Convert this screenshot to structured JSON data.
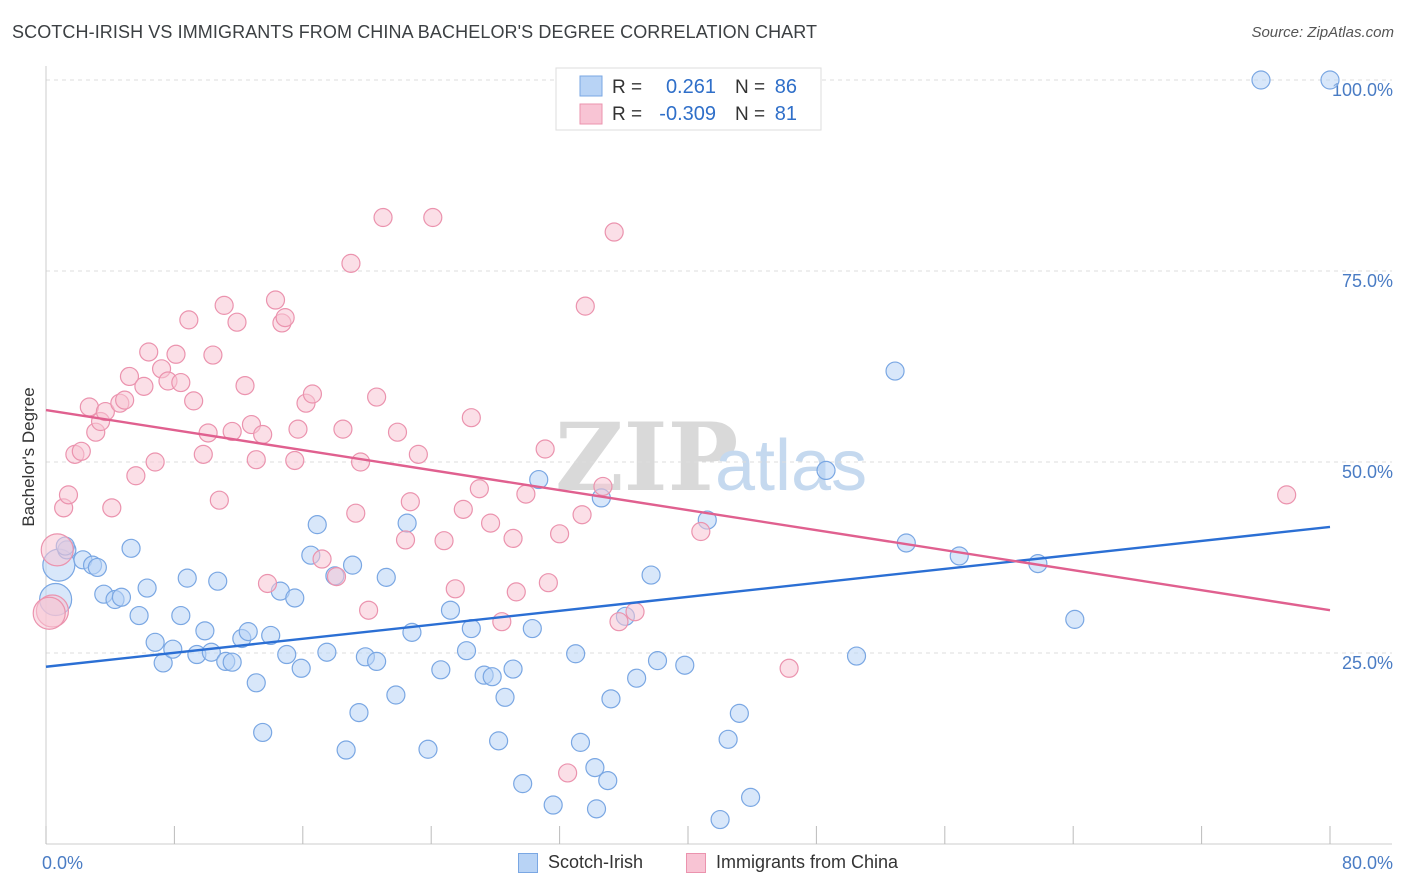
{
  "header": {
    "title": "SCOTCH-IRISH VS IMMIGRANTS FROM CHINA BACHELOR'S DEGREE CORRELATION CHART",
    "source": "Source: ZipAtlas.com"
  },
  "watermark": {
    "zip": "ZIP",
    "atlas": "atlas"
  },
  "colors": {
    "blue_fill": "#b8d3f5",
    "blue_stroke": "#7aa7e3",
    "blue_line": "#2b6fd4",
    "pink_fill": "#f8c4d4",
    "pink_stroke": "#eb93ae",
    "pink_line": "#e0608f"
  },
  "legend": {
    "r_label": "R =",
    "n_label": "N =",
    "blue": {
      "r": "0.261",
      "n": "86"
    },
    "pink": {
      "r": "-0.309",
      "n": "81"
    }
  },
  "bottom_legend": {
    "blue": "Scotch-Irish",
    "pink": "Immigrants from China"
  },
  "chart_data": {
    "type": "scatter",
    "title": "SCOTCH-IRISH VS IMMIGRANTS FROM CHINA BACHELOR'S DEGREE CORRELATION CHART",
    "xlabel": "",
    "ylabel": "Bachelor's Degree",
    "xlim": [
      0,
      80
    ],
    "ylim": [
      0,
      102
    ],
    "x_tick_labels": [
      "0.0%",
      "80.0%"
    ],
    "y_ticks": [
      25,
      50,
      75,
      100
    ],
    "y_tick_labels": [
      "25.0%",
      "50.0%",
      "75.0%",
      "100.0%"
    ],
    "grid": true,
    "legend_position": "top-center",
    "series": [
      {
        "name": "Scotch-Irish",
        "color": "#b8d3f5",
        "r": 0.261,
        "n": 86,
        "trend": {
          "x": [
            0,
            80
          ],
          "y": [
            23.2,
            41.5
          ]
        },
        "points": [
          [
            0.8,
            36.5
          ],
          [
            0.6,
            32
          ],
          [
            1.3,
            38.5
          ],
          [
            1.2,
            39
          ],
          [
            2.3,
            37.2
          ],
          [
            2.9,
            36.5
          ],
          [
            3.2,
            36.2
          ],
          [
            3.6,
            32.7
          ],
          [
            4.3,
            32.0
          ],
          [
            4.7,
            32.3
          ],
          [
            5.3,
            38.7
          ],
          [
            5.8,
            29.9
          ],
          [
            6.3,
            33.5
          ],
          [
            6.8,
            26.4
          ],
          [
            7.3,
            23.7
          ],
          [
            7.9,
            25.5
          ],
          [
            8.4,
            29.9
          ],
          [
            8.8,
            34.8
          ],
          [
            9.4,
            24.8
          ],
          [
            9.9,
            27.9
          ],
          [
            10.3,
            25.1
          ],
          [
            10.7,
            34.4
          ],
          [
            11.2,
            23.9
          ],
          [
            11.6,
            23.8
          ],
          [
            12.2,
            26.9
          ],
          [
            12.6,
            27.8
          ],
          [
            13.1,
            21.1
          ],
          [
            13.5,
            14.6
          ],
          [
            14.0,
            27.3
          ],
          [
            14.6,
            33.1
          ],
          [
            15.0,
            24.8
          ],
          [
            15.5,
            32.2
          ],
          [
            15.9,
            23.0
          ],
          [
            16.5,
            37.8
          ],
          [
            16.9,
            41.8
          ],
          [
            17.5,
            25.1
          ],
          [
            18.0,
            35.1
          ],
          [
            18.7,
            12.3
          ],
          [
            19.1,
            36.5
          ],
          [
            19.5,
            17.2
          ],
          [
            19.9,
            24.5
          ],
          [
            20.6,
            23.9
          ],
          [
            21.2,
            34.9
          ],
          [
            21.8,
            19.5
          ],
          [
            22.5,
            42.0
          ],
          [
            22.8,
            27.7
          ],
          [
            23.8,
            12.4
          ],
          [
            24.6,
            22.8
          ],
          [
            25.2,
            30.6
          ],
          [
            26.2,
            25.3
          ],
          [
            26.5,
            28.2
          ],
          [
            27.3,
            22.1
          ],
          [
            27.8,
            21.9
          ],
          [
            28.2,
            13.5
          ],
          [
            28.6,
            19.2
          ],
          [
            29.1,
            22.9
          ],
          [
            29.7,
            7.9
          ],
          [
            30.3,
            28.2
          ],
          [
            30.7,
            47.7
          ],
          [
            31.6,
            5.1
          ],
          [
            33.0,
            24.9
          ],
          [
            33.3,
            13.3
          ],
          [
            34.2,
            10.0
          ],
          [
            34.3,
            4.6
          ],
          [
            34.6,
            45.3
          ],
          [
            35.0,
            8.3
          ],
          [
            35.2,
            19.0
          ],
          [
            36.1,
            29.8
          ],
          [
            36.8,
            21.7
          ],
          [
            37.7,
            35.2
          ],
          [
            38.1,
            24.0
          ],
          [
            39.8,
            23.4
          ],
          [
            41.2,
            42.4
          ],
          [
            42.0,
            3.2
          ],
          [
            42.5,
            13.7
          ],
          [
            43.2,
            17.1
          ],
          [
            43.9,
            6.1
          ],
          [
            48.6,
            48.9
          ],
          [
            50.5,
            24.6
          ],
          [
            52.9,
            61.9
          ],
          [
            53.6,
            39.4
          ],
          [
            56.9,
            37.7
          ],
          [
            61.8,
            36.7
          ],
          [
            64.1,
            29.4
          ],
          [
            75.7,
            100.0
          ],
          [
            80.0,
            100.0
          ]
        ]
      },
      {
        "name": "Immigrants from China",
        "color": "#f8c4d4",
        "r": -0.309,
        "n": 81,
        "trend": {
          "x": [
            0,
            80
          ],
          "y": [
            56.8,
            30.6
          ]
        },
        "points": [
          [
            0.4,
            30.5
          ],
          [
            0.7,
            38.5
          ],
          [
            1.1,
            44.0
          ],
          [
            1.4,
            45.7
          ],
          [
            1.8,
            51.0
          ],
          [
            2.2,
            51.4
          ],
          [
            2.7,
            57.2
          ],
          [
            3.1,
            53.9
          ],
          [
            3.4,
            55.3
          ],
          [
            3.7,
            56.6
          ],
          [
            4.1,
            44.0
          ],
          [
            4.6,
            57.7
          ],
          [
            4.9,
            58.1
          ],
          [
            5.2,
            61.2
          ],
          [
            5.6,
            48.2
          ],
          [
            6.1,
            59.9
          ],
          [
            6.4,
            64.4
          ],
          [
            6.8,
            50.0
          ],
          [
            7.2,
            62.2
          ],
          [
            7.6,
            60.6
          ],
          [
            8.1,
            64.1
          ],
          [
            8.4,
            60.4
          ],
          [
            8.9,
            68.6
          ],
          [
            9.2,
            58.0
          ],
          [
            9.8,
            51.0
          ],
          [
            10.1,
            53.8
          ],
          [
            10.4,
            64.0
          ],
          [
            10.8,
            45.0
          ],
          [
            11.1,
            70.5
          ],
          [
            11.6,
            54.0
          ],
          [
            11.9,
            68.3
          ],
          [
            12.4,
            60.0
          ],
          [
            12.8,
            54.9
          ],
          [
            13.1,
            50.3
          ],
          [
            13.5,
            53.6
          ],
          [
            13.8,
            34.1
          ],
          [
            14.3,
            71.2
          ],
          [
            14.7,
            68.2
          ],
          [
            14.9,
            68.9
          ],
          [
            15.5,
            50.2
          ],
          [
            15.7,
            54.3
          ],
          [
            16.2,
            57.7
          ],
          [
            16.6,
            58.9
          ],
          [
            17.2,
            37.3
          ],
          [
            18.1,
            35.0
          ],
          [
            18.5,
            54.3
          ],
          [
            19.0,
            76.0
          ],
          [
            19.3,
            43.3
          ],
          [
            19.6,
            50.0
          ],
          [
            20.1,
            30.6
          ],
          [
            20.6,
            58.5
          ],
          [
            21.0,
            82.0
          ],
          [
            21.9,
            53.9
          ],
          [
            22.4,
            39.8
          ],
          [
            22.7,
            44.8
          ],
          [
            23.2,
            51.0
          ],
          [
            24.1,
            82.0
          ],
          [
            24.8,
            39.7
          ],
          [
            25.5,
            33.4
          ],
          [
            26.0,
            43.8
          ],
          [
            26.5,
            55.8
          ],
          [
            27.0,
            46.5
          ],
          [
            27.7,
            42.0
          ],
          [
            28.4,
            29.1
          ],
          [
            29.1,
            40.0
          ],
          [
            29.3,
            33.0
          ],
          [
            29.9,
            45.8
          ],
          [
            31.1,
            51.7
          ],
          [
            31.3,
            34.2
          ],
          [
            32.0,
            40.6
          ],
          [
            32.5,
            9.3
          ],
          [
            33.4,
            43.1
          ],
          [
            33.6,
            70.4
          ],
          [
            34.7,
            46.8
          ],
          [
            35.4,
            80.1
          ],
          [
            35.7,
            29.1
          ],
          [
            36.7,
            30.4
          ],
          [
            40.8,
            40.9
          ],
          [
            46.3,
            23.0
          ],
          [
            77.3,
            45.7
          ],
          [
            0.2,
            30.2
          ]
        ]
      }
    ]
  }
}
